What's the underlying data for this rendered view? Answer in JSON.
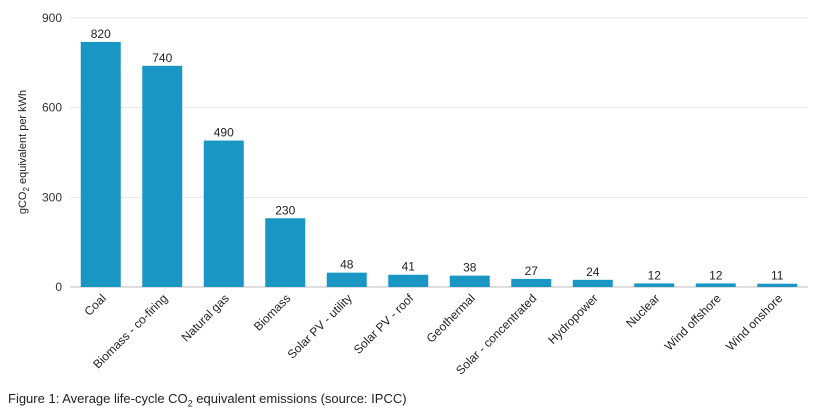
{
  "chart_data": {
    "type": "bar",
    "categories": [
      "Coal",
      "Biomass - co-firing",
      "Natural gas",
      "Biomass",
      "Solar PV - utility",
      "Solar PV - roof",
      "Geothermal",
      "Solar - concentrated",
      "Hydropower",
      "Nuclear",
      "Wind offshore",
      "Wind onshore"
    ],
    "values": [
      820,
      740,
      490,
      230,
      48,
      41,
      38,
      27,
      24,
      12,
      12,
      11
    ],
    "ylabel_prefix": "gCO",
    "ylabel_sub": "2",
    "ylabel_suffix": " equivalent per kWh",
    "ylim": [
      0,
      900
    ],
    "yticks": [
      0,
      300,
      600,
      900
    ],
    "grid": true,
    "bar_color": "#1a96c4",
    "grid_color": "#e6e6e6"
  },
  "caption": {
    "prefix": "Figure 1: Average life-cycle CO",
    "sub": "2",
    "suffix": " equivalent emissions (source: IPCC)"
  }
}
